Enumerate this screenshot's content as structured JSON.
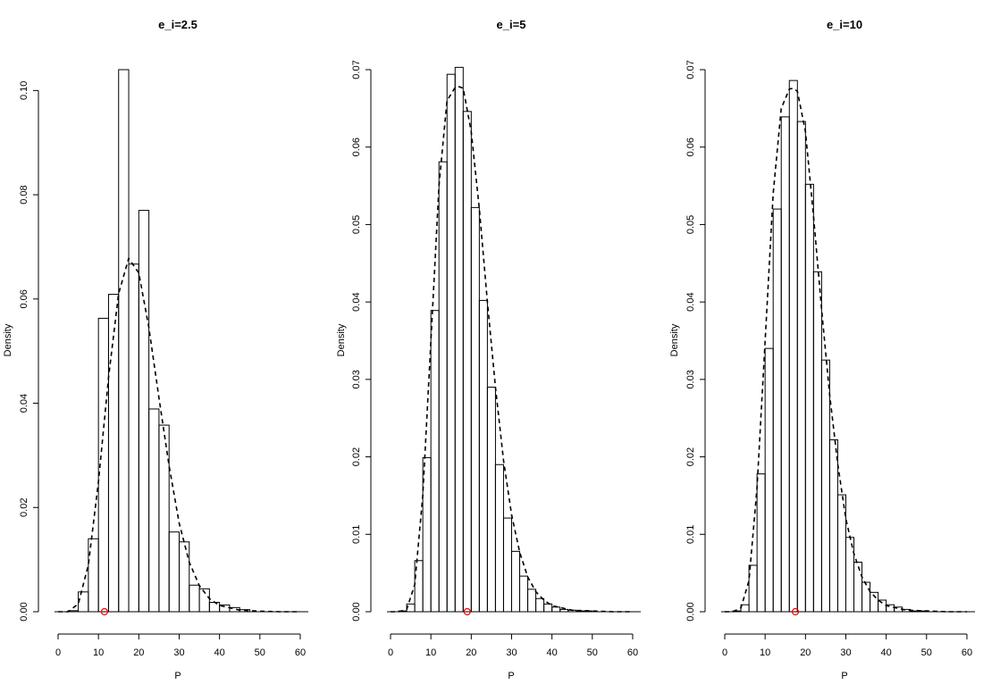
{
  "figure": {
    "background": "#ffffff",
    "stroke_color": "#000000",
    "marker_color": "#ff0000"
  },
  "chart_data": [
    {
      "type": "bar",
      "title": "e_i=2.5",
      "xlabel": "P",
      "ylabel": "Density",
      "xlim": [
        0,
        62
      ],
      "ylim": [
        0,
        0.104
      ],
      "xticks": [
        0,
        10,
        20,
        30,
        40,
        50,
        60
      ],
      "yticks": [
        0.0,
        0.02,
        0.04,
        0.06,
        0.08,
        0.1
      ],
      "ytick_labels": [
        "0.00",
        "0.02",
        "0.04",
        "0.06",
        "0.08",
        "0.10"
      ],
      "bin_width": 2.5,
      "bins_start": [
        0,
        2.5,
        5,
        7.5,
        10,
        12.5,
        15,
        17.5,
        20,
        22.5,
        25,
        27.5,
        30,
        32.5,
        35,
        37.5,
        40,
        42.5,
        45
      ],
      "values": [
        0.0,
        0.0002,
        0.0038,
        0.014,
        0.0563,
        0.0609,
        0.104,
        0.0667,
        0.077,
        0.0389,
        0.0358,
        0.0153,
        0.0134,
        0.0051,
        0.0044,
        0.0018,
        0.0013,
        0.0008,
        0.0004
      ],
      "curve": {
        "style": "dashed",
        "x": [
          0,
          2.5,
          5,
          7.5,
          10,
          12.5,
          15,
          17.5,
          20,
          22.5,
          25,
          27.5,
          30,
          32.5,
          35,
          37.5,
          40,
          45,
          50,
          55,
          60
        ],
        "y": [
          0.0,
          0.0,
          0.0015,
          0.009,
          0.025,
          0.045,
          0.061,
          0.0678,
          0.065,
          0.0545,
          0.041,
          0.028,
          0.017,
          0.0095,
          0.005,
          0.0025,
          0.0012,
          0.0003,
          0.0001,
          0.0,
          0.0
        ]
      },
      "marker": {
        "x": 11.5,
        "y": 0.0,
        "shape": "open-circle"
      }
    },
    {
      "type": "bar",
      "title": "e_i=5",
      "xlabel": "P",
      "ylabel": "Density",
      "xlim": [
        0,
        62
      ],
      "ylim": [
        0,
        0.07
      ],
      "xticks": [
        0,
        10,
        20,
        30,
        40,
        50,
        60
      ],
      "yticks": [
        0.0,
        0.01,
        0.02,
        0.03,
        0.04,
        0.05,
        0.06,
        0.07
      ],
      "ytick_labels": [
        "0.00",
        "0.01",
        "0.02",
        "0.03",
        "0.04",
        "0.05",
        "0.06",
        "0.07"
      ],
      "bin_width": 2,
      "bins_start": [
        0,
        2,
        4,
        6,
        8,
        10,
        12,
        14,
        16,
        18,
        20,
        22,
        24,
        26,
        28,
        30,
        32,
        34,
        36,
        38,
        40,
        42,
        44,
        46,
        48
      ],
      "values": [
        0.0,
        0.0001,
        0.001,
        0.0066,
        0.0199,
        0.0389,
        0.0581,
        0.0694,
        0.0703,
        0.0646,
        0.0522,
        0.0402,
        0.029,
        0.019,
        0.0121,
        0.0078,
        0.0046,
        0.0029,
        0.0017,
        0.001,
        0.0006,
        0.0003,
        0.0002,
        0.0001,
        0.0001
      ],
      "curve": {
        "style": "dashed",
        "x": [
          0,
          2,
          4,
          6,
          8,
          10,
          12,
          14,
          16,
          17,
          18,
          20,
          22,
          24,
          26,
          28,
          30,
          32,
          34,
          36,
          38,
          40,
          45,
          50,
          55,
          60
        ],
        "y": [
          0.0,
          0.0,
          0.0003,
          0.0035,
          0.015,
          0.035,
          0.055,
          0.066,
          0.0677,
          0.0678,
          0.0676,
          0.062,
          0.052,
          0.04,
          0.029,
          0.0195,
          0.0125,
          0.0077,
          0.0045,
          0.0026,
          0.0015,
          0.0008,
          0.0002,
          0.0001,
          0.0,
          0.0
        ]
      },
      "marker": {
        "x": 19,
        "y": 0.0,
        "shape": "open-circle"
      }
    },
    {
      "type": "bar",
      "title": "e_i=10",
      "xlabel": "P",
      "ylabel": "Density",
      "xlim": [
        0,
        62
      ],
      "ylim": [
        0,
        0.07
      ],
      "xticks": [
        0,
        10,
        20,
        30,
        40,
        50,
        60
      ],
      "yticks": [
        0.0,
        0.01,
        0.02,
        0.03,
        0.04,
        0.05,
        0.06,
        0.07
      ],
      "ytick_labels": [
        "0.00",
        "0.01",
        "0.02",
        "0.03",
        "0.04",
        "0.05",
        "0.06",
        "0.07"
      ],
      "bin_width": 2,
      "bins_start": [
        0,
        2,
        4,
        6,
        8,
        10,
        12,
        14,
        16,
        18,
        20,
        22,
        24,
        26,
        28,
        30,
        32,
        34,
        36,
        38,
        40,
        42,
        44,
        46,
        48
      ],
      "values": [
        0.0,
        0.0001,
        0.0009,
        0.006,
        0.0178,
        0.034,
        0.052,
        0.0639,
        0.0686,
        0.0633,
        0.0552,
        0.0439,
        0.0325,
        0.0222,
        0.0151,
        0.0096,
        0.0064,
        0.0038,
        0.0025,
        0.0015,
        0.0009,
        0.0006,
        0.0003,
        0.0001,
        0.0001
      ],
      "curve": {
        "style": "dashed",
        "x": [
          0,
          2,
          4,
          6,
          8,
          10,
          12,
          14,
          16,
          17,
          18,
          20,
          22,
          24,
          26,
          28,
          30,
          32,
          34,
          36,
          38,
          40,
          45,
          50,
          55,
          60
        ],
        "y": [
          0.0,
          0.0,
          0.0005,
          0.004,
          0.016,
          0.035,
          0.054,
          0.065,
          0.0675,
          0.0676,
          0.0672,
          0.062,
          0.051,
          0.039,
          0.028,
          0.019,
          0.012,
          0.0075,
          0.0045,
          0.0026,
          0.0015,
          0.0008,
          0.0002,
          0.0001,
          0.0,
          0.0
        ]
      },
      "marker": {
        "x": 17.5,
        "y": 0.0,
        "shape": "open-circle"
      }
    }
  ]
}
